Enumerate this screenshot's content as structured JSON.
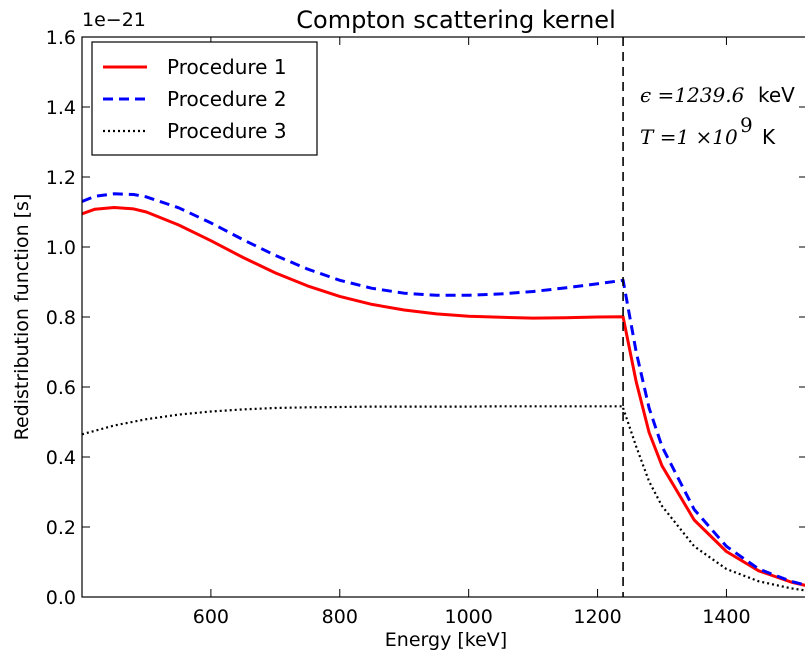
{
  "chart_data": {
    "type": "line",
    "title": "Compton scattering kernel",
    "xlabel": "Energy [keV]",
    "ylabel": "Redistribution function [s]",
    "y_offset_label": "1e−21",
    "xlim": [
      400,
      1525
    ],
    "ylim": [
      0.0,
      1.6
    ],
    "x_ticks": [
      600,
      800,
      1000,
      1200,
      1400
    ],
    "x_tick_labels": [
      "600",
      "800",
      "1000",
      "1200",
      "1400"
    ],
    "y_ticks": [
      0.0,
      0.2,
      0.4,
      0.6,
      0.8,
      1.0,
      1.2,
      1.4,
      1.6
    ],
    "y_tick_labels": [
      "0.0",
      "0.2",
      "0.4",
      "0.6",
      "0.8",
      "1.0",
      "1.2",
      "1.4",
      "1.6"
    ],
    "grid": false,
    "legend_position": "top-left",
    "vertical_line": {
      "x": 1239.6,
      "style": "dashed",
      "color": "#000000"
    },
    "annotations": {
      "epsilon_label": "ϵ =1239.6",
      "epsilon_unit": "keV",
      "temperature_label": "T =1 ×10",
      "temperature_exponent": "9",
      "temperature_unit": "K"
    },
    "series": [
      {
        "name": "Procedure 1",
        "color": "#ff0000",
        "style": "solid",
        "x": [
          400,
          420,
          450,
          480,
          500,
          550,
          600,
          650,
          700,
          750,
          800,
          850,
          900,
          950,
          1000,
          1050,
          1100,
          1150,
          1200,
          1239.6,
          1239.6,
          1260,
          1280,
          1300,
          1350,
          1400,
          1450,
          1500,
          1525
        ],
        "y": [
          1.095,
          1.108,
          1.113,
          1.109,
          1.1,
          1.063,
          1.018,
          0.97,
          0.926,
          0.889,
          0.859,
          0.836,
          0.82,
          0.809,
          0.802,
          0.799,
          0.797,
          0.798,
          0.8,
          0.801,
          0.8,
          0.615,
          0.47,
          0.375,
          0.22,
          0.13,
          0.075,
          0.043,
          0.032
        ]
      },
      {
        "name": "Procedure 2",
        "color": "#0000ff",
        "style": "dashed",
        "x": [
          400,
          420,
          450,
          480,
          500,
          550,
          600,
          650,
          700,
          750,
          800,
          850,
          900,
          950,
          1000,
          1050,
          1100,
          1150,
          1200,
          1239.6,
          1239.6,
          1260,
          1280,
          1300,
          1350,
          1400,
          1450,
          1500,
          1525
        ],
        "y": [
          1.13,
          1.145,
          1.152,
          1.15,
          1.143,
          1.112,
          1.069,
          1.021,
          0.976,
          0.937,
          0.905,
          0.882,
          0.868,
          0.862,
          0.862,
          0.866,
          0.873,
          0.883,
          0.895,
          0.905,
          0.905,
          0.7,
          0.54,
          0.43,
          0.25,
          0.145,
          0.08,
          0.045,
          0.033
        ]
      },
      {
        "name": "Procedure 3",
        "color": "#000000",
        "style": "dotted",
        "x": [
          400,
          450,
          500,
          550,
          600,
          650,
          700,
          750,
          800,
          850,
          900,
          950,
          1000,
          1050,
          1100,
          1150,
          1200,
          1239.6,
          1239.6,
          1260,
          1280,
          1300,
          1350,
          1400,
          1450,
          1500,
          1525
        ],
        "y": [
          0.465,
          0.49,
          0.508,
          0.521,
          0.53,
          0.536,
          0.54,
          0.542,
          0.543,
          0.544,
          0.544,
          0.544,
          0.544,
          0.545,
          0.545,
          0.545,
          0.545,
          0.545,
          0.54,
          0.43,
          0.33,
          0.26,
          0.145,
          0.08,
          0.045,
          0.025,
          0.018
        ]
      }
    ]
  }
}
